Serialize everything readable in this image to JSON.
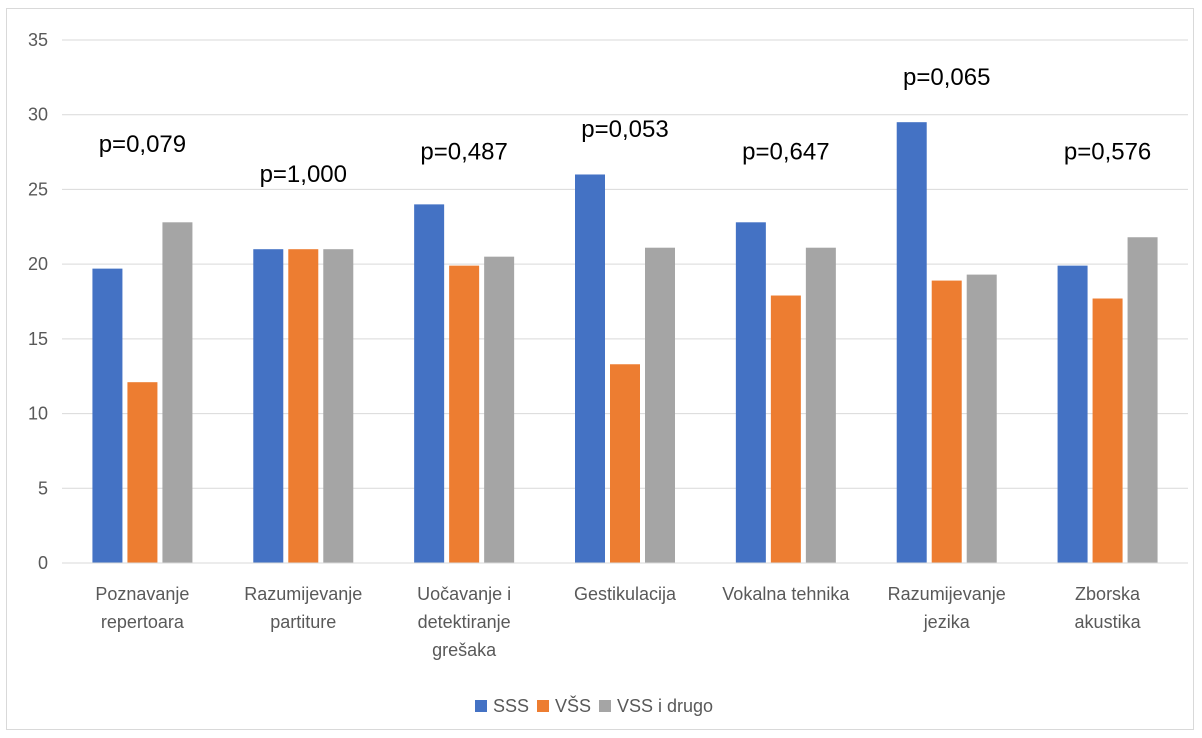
{
  "chart_data": {
    "type": "bar",
    "title": "",
    "xlabel": "",
    "ylabel": "",
    "ylim": [
      0,
      35
    ],
    "y_ticks": [
      0,
      5,
      10,
      15,
      20,
      25,
      30,
      35
    ],
    "grid": "horizontal",
    "legend_position": "bottom",
    "categories": [
      [
        "Poznavanje",
        "repertoara"
      ],
      [
        "Razumijevanje",
        "partiture"
      ],
      [
        "Uočavanje i",
        "detektiranje",
        "grešaka"
      ],
      [
        "Gestikulacija"
      ],
      [
        "Vokalna tehnika"
      ],
      [
        "Razumijevanje",
        "jezika"
      ],
      [
        "Zborska",
        "akustika"
      ]
    ],
    "series": [
      {
        "name": "SSS",
        "color": "#4472c4",
        "values": [
          19.7,
          21.0,
          24.0,
          26.0,
          22.8,
          29.5,
          19.9
        ]
      },
      {
        "name": "VŠS",
        "color": "#ed7d31",
        "values": [
          12.1,
          21.0,
          19.9,
          13.3,
          17.9,
          18.9,
          17.7
        ]
      },
      {
        "name": "VSS i drugo",
        "color": "#a5a5a5",
        "values": [
          22.8,
          21.0,
          20.5,
          21.1,
          21.1,
          19.3,
          21.8
        ]
      }
    ],
    "annotations": [
      {
        "category_index": 0,
        "text": "p=0,079",
        "y_value": 27.5
      },
      {
        "category_index": 1,
        "text": "p=1,000",
        "y_value": 25.5
      },
      {
        "category_index": 2,
        "text": "p=0,487",
        "y_value": 27.0
      },
      {
        "category_index": 3,
        "text": "p=0,053",
        "y_value": 28.5
      },
      {
        "category_index": 4,
        "text": "p=0,647",
        "y_value": 27.0
      },
      {
        "category_index": 5,
        "text": "p=0,065",
        "y_value": 32.0
      },
      {
        "category_index": 6,
        "text": "p=0,576",
        "y_value": 27.0
      }
    ]
  }
}
